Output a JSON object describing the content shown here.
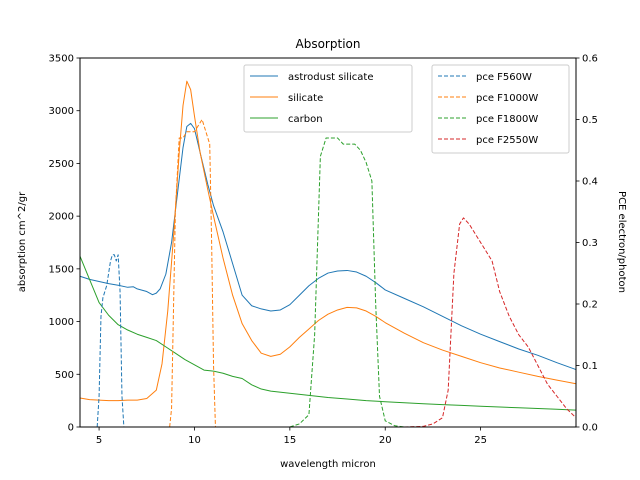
{
  "chart_data": {
    "type": "line",
    "title": "Absorption",
    "xlabel": "wavelength micron",
    "ylabel_left": "absorption cm^2/gr",
    "ylabel_right": "PCE electron/photon",
    "xlim": [
      4,
      30
    ],
    "ylim_left": [
      0,
      3500
    ],
    "ylim_right": [
      0,
      0.6
    ],
    "x_ticks": [
      5,
      10,
      15,
      20,
      25
    ],
    "x_tick_labels": [
      "5",
      "10",
      "15",
      "20",
      "25"
    ],
    "y_left_ticks": [
      0,
      500,
      1000,
      1500,
      2000,
      2500,
      3000,
      3500
    ],
    "y_left_tick_labels": [
      "0",
      "500",
      "1000",
      "1500",
      "2000",
      "2500",
      "3000",
      "3500"
    ],
    "y_right_ticks": [
      0,
      0.1,
      0.2,
      0.3,
      0.4,
      0.5,
      0.6
    ],
    "y_right_tick_labels": [
      "0.0",
      "0.1",
      "0.2",
      "0.3",
      "0.4",
      "0.5",
      "0.6"
    ],
    "legend_left_position": "upper-center",
    "legend_right_position": "upper-right",
    "series_left": [
      {
        "name": "astrodust silicate",
        "color": "#1f77b4",
        "dash": "solid",
        "points": [
          [
            4,
            1430
          ],
          [
            4.5,
            1400
          ],
          [
            5,
            1380
          ],
          [
            5.5,
            1360
          ],
          [
            6,
            1345
          ],
          [
            6.5,
            1325
          ],
          [
            6.8,
            1330
          ],
          [
            7,
            1310
          ],
          [
            7.5,
            1285
          ],
          [
            7.8,
            1255
          ],
          [
            8,
            1270
          ],
          [
            8.2,
            1310
          ],
          [
            8.5,
            1450
          ],
          [
            8.8,
            1750
          ],
          [
            9.1,
            2200
          ],
          [
            9.4,
            2650
          ],
          [
            9.6,
            2850
          ],
          [
            9.8,
            2880
          ],
          [
            10,
            2830
          ],
          [
            10.3,
            2600
          ],
          [
            10.7,
            2300
          ],
          [
            11,
            2100
          ],
          [
            11.5,
            1850
          ],
          [
            12,
            1550
          ],
          [
            12.5,
            1250
          ],
          [
            13,
            1150
          ],
          [
            13.5,
            1120
          ],
          [
            14,
            1100
          ],
          [
            14.5,
            1110
          ],
          [
            15,
            1160
          ],
          [
            15.5,
            1250
          ],
          [
            16,
            1340
          ],
          [
            16.5,
            1410
          ],
          [
            17,
            1460
          ],
          [
            17.5,
            1480
          ],
          [
            18,
            1485
          ],
          [
            18.5,
            1470
          ],
          [
            19,
            1430
          ],
          [
            19.5,
            1370
          ],
          [
            20,
            1300
          ],
          [
            21,
            1220
          ],
          [
            22,
            1140
          ],
          [
            23,
            1050
          ],
          [
            24,
            960
          ],
          [
            25,
            880
          ],
          [
            26,
            810
          ],
          [
            27,
            740
          ],
          [
            28,
            680
          ],
          [
            29,
            610
          ],
          [
            30,
            545
          ]
        ]
      },
      {
        "name": "silicate",
        "color": "#ff7f0e",
        "dash": "solid",
        "points": [
          [
            4,
            275
          ],
          [
            4.5,
            260
          ],
          [
            5,
            255
          ],
          [
            5.5,
            250
          ],
          [
            6,
            250
          ],
          [
            6.5,
            255
          ],
          [
            7,
            255
          ],
          [
            7.5,
            270
          ],
          [
            8,
            350
          ],
          [
            8.3,
            600
          ],
          [
            8.6,
            1100
          ],
          [
            8.9,
            1800
          ],
          [
            9.2,
            2600
          ],
          [
            9.4,
            3050
          ],
          [
            9.6,
            3280
          ],
          [
            9.8,
            3200
          ],
          [
            10,
            2950
          ],
          [
            10.3,
            2600
          ],
          [
            10.7,
            2250
          ],
          [
            11,
            2000
          ],
          [
            11.5,
            1600
          ],
          [
            12,
            1250
          ],
          [
            12.5,
            980
          ],
          [
            13,
            820
          ],
          [
            13.5,
            700
          ],
          [
            14,
            670
          ],
          [
            14.5,
            690
          ],
          [
            15,
            760
          ],
          [
            15.5,
            850
          ],
          [
            16,
            930
          ],
          [
            16.5,
            1010
          ],
          [
            17,
            1070
          ],
          [
            17.5,
            1110
          ],
          [
            18,
            1135
          ],
          [
            18.5,
            1130
          ],
          [
            19,
            1100
          ],
          [
            19.5,
            1050
          ],
          [
            20,
            990
          ],
          [
            21,
            890
          ],
          [
            22,
            800
          ],
          [
            23,
            730
          ],
          [
            24,
            670
          ],
          [
            25,
            610
          ],
          [
            26,
            560
          ],
          [
            27,
            520
          ],
          [
            28,
            480
          ],
          [
            29,
            445
          ],
          [
            30,
            410
          ]
        ]
      },
      {
        "name": "carbon",
        "color": "#2ca02c",
        "dash": "solid",
        "points": [
          [
            4,
            1620
          ],
          [
            4.5,
            1400
          ],
          [
            5,
            1180
          ],
          [
            5.5,
            1060
          ],
          [
            6,
            970
          ],
          [
            6.5,
            920
          ],
          [
            7,
            880
          ],
          [
            7.5,
            850
          ],
          [
            8,
            820
          ],
          [
            8.5,
            760
          ],
          [
            9,
            700
          ],
          [
            9.5,
            640
          ],
          [
            10,
            590
          ],
          [
            10.5,
            540
          ],
          [
            11,
            530
          ],
          [
            11.5,
            510
          ],
          [
            12,
            480
          ],
          [
            12.5,
            460
          ],
          [
            13,
            400
          ],
          [
            13.5,
            360
          ],
          [
            14,
            340
          ],
          [
            15,
            320
          ],
          [
            16,
            300
          ],
          [
            17,
            280
          ],
          [
            18,
            265
          ],
          [
            19,
            250
          ],
          [
            20,
            240
          ],
          [
            21,
            230
          ],
          [
            22,
            220
          ],
          [
            23,
            212
          ],
          [
            24,
            205
          ],
          [
            25,
            197
          ],
          [
            26,
            190
          ],
          [
            27,
            182
          ],
          [
            28,
            175
          ],
          [
            29,
            168
          ],
          [
            30,
            160
          ]
        ]
      }
    ],
    "series_right": [
      {
        "name": "pce F560W",
        "color": "#1f77b4",
        "dash": "dashed",
        "points": [
          [
            4.9,
            0
          ],
          [
            5.0,
            0.05
          ],
          [
            5.1,
            0.18
          ],
          [
            5.2,
            0.21
          ],
          [
            5.3,
            0.22
          ],
          [
            5.4,
            0.23
          ],
          [
            5.5,
            0.25
          ],
          [
            5.6,
            0.27
          ],
          [
            5.7,
            0.28
          ],
          [
            5.8,
            0.28
          ],
          [
            5.9,
            0.27
          ],
          [
            6.0,
            0.28
          ],
          [
            6.1,
            0.22
          ],
          [
            6.2,
            0.05
          ],
          [
            6.3,
            0
          ]
        ]
      },
      {
        "name": "pce F1000W",
        "color": "#ff7f0e",
        "dash": "dashed",
        "points": [
          [
            8.7,
            0
          ],
          [
            8.8,
            0.03
          ],
          [
            9.0,
            0.35
          ],
          [
            9.2,
            0.47
          ],
          [
            9.4,
            0.47
          ],
          [
            9.6,
            0.48
          ],
          [
            9.8,
            0.48
          ],
          [
            10.0,
            0.48
          ],
          [
            10.2,
            0.49
          ],
          [
            10.4,
            0.5
          ],
          [
            10.6,
            0.48
          ],
          [
            10.8,
            0.46
          ],
          [
            10.9,
            0.3
          ],
          [
            11.0,
            0.1
          ],
          [
            11.1,
            0
          ]
        ]
      },
      {
        "name": "pce F1800W",
        "color": "#2ca02c",
        "dash": "dashed",
        "points": [
          [
            15.0,
            0
          ],
          [
            15.5,
            0.005
          ],
          [
            16.0,
            0.02
          ],
          [
            16.3,
            0.15
          ],
          [
            16.6,
            0.44
          ],
          [
            16.9,
            0.47
          ],
          [
            17.2,
            0.47
          ],
          [
            17.5,
            0.47
          ],
          [
            17.8,
            0.46
          ],
          [
            18.1,
            0.46
          ],
          [
            18.4,
            0.46
          ],
          [
            18.7,
            0.45
          ],
          [
            19.0,
            0.43
          ],
          [
            19.3,
            0.4
          ],
          [
            19.5,
            0.2
          ],
          [
            19.7,
            0.05
          ],
          [
            20.0,
            0.01
          ],
          [
            20.5,
            0.002
          ],
          [
            21,
            0
          ]
        ]
      },
      {
        "name": "pce F2550W",
        "color": "#d62728",
        "dash": "dashed",
        "points": [
          [
            21,
            0
          ],
          [
            22,
            0.001
          ],
          [
            22.5,
            0.005
          ],
          [
            23,
            0.015
          ],
          [
            23.3,
            0.06
          ],
          [
            23.6,
            0.25
          ],
          [
            23.9,
            0.33
          ],
          [
            24.1,
            0.34
          ],
          [
            24.4,
            0.33
          ],
          [
            24.8,
            0.31
          ],
          [
            25.2,
            0.29
          ],
          [
            25.6,
            0.27
          ],
          [
            26.0,
            0.22
          ],
          [
            26.5,
            0.18
          ],
          [
            27.0,
            0.15
          ],
          [
            27.5,
            0.13
          ],
          [
            28.0,
            0.1
          ],
          [
            28.5,
            0.07
          ],
          [
            29.0,
            0.05
          ],
          [
            29.5,
            0.03
          ],
          [
            30,
            0.015
          ]
        ]
      }
    ]
  }
}
